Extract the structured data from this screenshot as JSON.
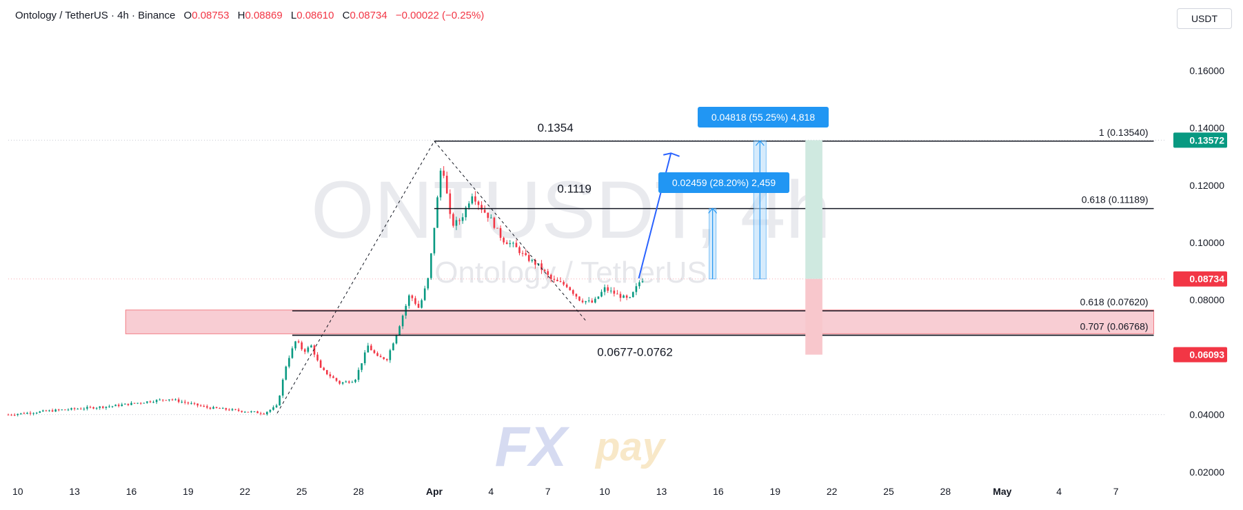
{
  "header": {
    "symbol": "Ontology / TetherUS · 4h · Binance",
    "open_label": "O",
    "open": "0.08753",
    "high_label": "H",
    "high": "0.08869",
    "low_label": "L",
    "low": "0.08610",
    "close_label": "C",
    "close": "0.08734",
    "change": "−0.00022 (−0.25%)"
  },
  "currency_button": "USDT",
  "watermark": {
    "ticker": "ONTUSDT, 4h",
    "name": "Ontology / TetherUS"
  },
  "logo": {
    "text_fx": "FX",
    "text_pay": "pay"
  },
  "chart_data": {
    "type": "candlestick",
    "title": "Ontology / TetherUS · 4h · Binance",
    "y_axis": {
      "ticks": [
        "0.16000",
        "0.14000",
        "0.12000",
        "0.10000",
        "0.08000",
        "0.04000",
        "0.02000"
      ],
      "tick_values": [
        0.16,
        0.14,
        0.12,
        0.1,
        0.08,
        0.04,
        0.02
      ],
      "range": [
        0.013,
        0.175
      ]
    },
    "x_axis": {
      "ticks": [
        "10",
        "13",
        "16",
        "19",
        "22",
        "25",
        "28",
        "Apr",
        "4",
        "7",
        "10",
        "13",
        "16",
        "19",
        "22",
        "25",
        "28",
        "May",
        "4",
        "7"
      ],
      "tick_days": [
        -22,
        -19,
        -16,
        -13,
        -10,
        -7,
        -4,
        0,
        3,
        6,
        9,
        12,
        15,
        18,
        21,
        24,
        27,
        30,
        33,
        36
      ],
      "range_days": [
        -22.5,
        38.6
      ],
      "unit": "days from Apr 1"
    },
    "price_labels": [
      {
        "text": "0.13572",
        "value": 0.13572,
        "color": "#089981"
      },
      {
        "text": "0.08734",
        "value": 0.08734,
        "color": "#f23645"
      },
      {
        "text": "0.06093",
        "value": 0.06093,
        "color": "#f23645"
      }
    ],
    "close_series": {
      "days": [
        -22.5,
        -20,
        -17,
        -14,
        -12,
        -9,
        -8.3,
        -7.8,
        -7.3,
        -6.9,
        -6.5,
        -6,
        -5,
        -4.2,
        -3.5,
        -3,
        -2.5,
        -1.9,
        -1.3,
        -0.8,
        -0.3,
        0.4,
        0.9,
        1.4,
        2,
        2.5,
        3,
        3.6,
        4.2,
        4.8,
        5.5,
        6.2,
        7,
        7.7,
        8.4,
        9,
        9.6,
        10.3,
        10.9,
        11.1
      ],
      "closes": [
        0.04,
        0.0415,
        0.043,
        0.0455,
        0.0425,
        0.0405,
        0.043,
        0.058,
        0.066,
        0.062,
        0.064,
        0.056,
        0.051,
        0.052,
        0.064,
        0.06,
        0.0595,
        0.07,
        0.082,
        0.077,
        0.088,
        0.129,
        0.106,
        0.108,
        0.117,
        0.112,
        0.108,
        0.101,
        0.099,
        0.095,
        0.092,
        0.087,
        0.085,
        0.08,
        0.079,
        0.084,
        0.082,
        0.08,
        0.087,
        0.0873
      ]
    },
    "annotations": [
      {
        "text": "0.1354",
        "kind": "level",
        "value": 0.1354
      },
      {
        "text": "0.1119",
        "kind": "level",
        "value": 0.1119
      },
      {
        "text": "0.0677-0.0762",
        "kind": "zone",
        "from": 0.0677,
        "to": 0.0762
      },
      {
        "text": "0.04818 (55.25%) 4,818",
        "kind": "measure",
        "from": 0.08734,
        "to": 0.13552
      },
      {
        "text": "0.02459 (28.20%) 2,459",
        "kind": "measure",
        "from": 0.08734,
        "to": 0.11193
      }
    ],
    "fib_levels": [
      {
        "label": "1 (0.13540)",
        "value": 0.1354
      },
      {
        "label": "0.618 (0.11189)",
        "value": 0.11189
      },
      {
        "label": "0.618 (0.07620)",
        "value": 0.0762
      },
      {
        "label": "0.707 (0.06768)",
        "value": 0.06768
      }
    ],
    "position_tool": {
      "entry": 0.08734,
      "target": 0.13572,
      "stop": 0.06093
    },
    "colors": {
      "up": "#089981",
      "down": "#f23645",
      "projection_arrow": "#2962ff",
      "measure_label": "#2196f3",
      "zone_fill": "#f7c5cc",
      "target_fill": "#cfe9e0",
      "stop_fill": "#f8c7cc"
    }
  }
}
